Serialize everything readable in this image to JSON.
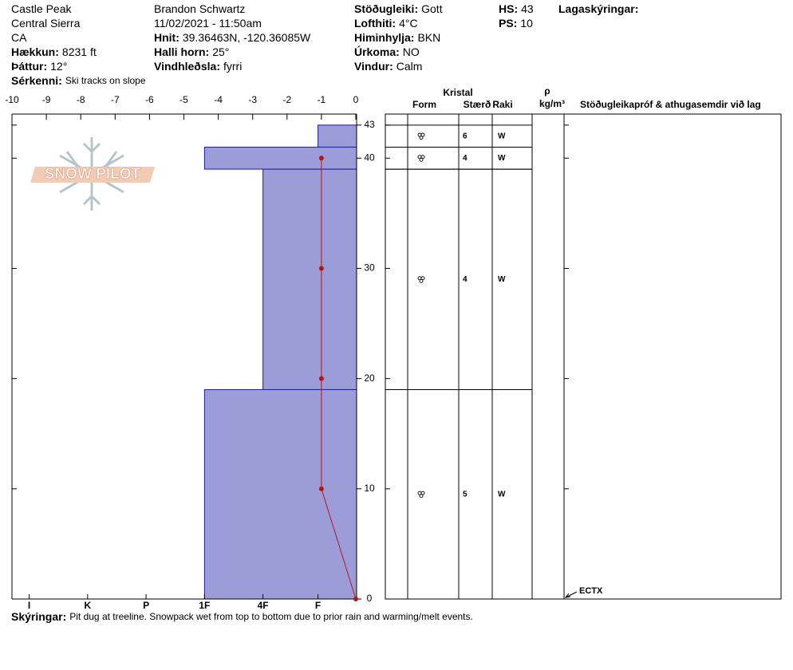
{
  "header": {
    "columns": [
      [
        {
          "value": "Castle Peak"
        },
        {
          "value": "Central Sierra"
        },
        {
          "value": "CA"
        },
        {
          "label": "Hækkun:",
          "value": "8231 ft"
        },
        {
          "label": "Þáttur:",
          "value": "12°"
        },
        {
          "label": "Sérkenni:",
          "value": "Ski tracks on slope"
        }
      ],
      [
        {
          "value": "Brandon Schwartz"
        },
        {
          "value": "11/02/2021 - 11:50am"
        },
        {
          "label": "Hnit:",
          "value": "39.36463N, -120.36085W"
        },
        {
          "label": "Halli horn:",
          "value": "25°"
        },
        {
          "label": "Vindhleðsla:",
          "value": "fyrri"
        }
      ],
      [
        {
          "label": "Stöðugleiki:",
          "value": "Gott"
        },
        {
          "label": "Lofthiti:",
          "value": "4°C"
        },
        {
          "label": "Himinhylja:",
          "value": "BKN"
        },
        {
          "label": "Úrkoma:",
          "value": "NO"
        },
        {
          "label": "Vindur:",
          "value": "Calm"
        }
      ],
      [
        {
          "label": "HS:",
          "value": "43"
        },
        {
          "label": "PS:",
          "value": "10"
        }
      ],
      [
        {
          "label": "Lagaskýringar:"
        }
      ]
    ]
  },
  "logo": "SNOW PILOT",
  "chart_data": {
    "type": "snow-profile",
    "xlim": [
      -10,
      0
    ],
    "xticks": [
      -10,
      -9,
      -8,
      -7,
      -6,
      -5,
      -4,
      -3,
      -2,
      -1,
      0
    ],
    "hardness_ticks": [
      {
        "value": -9.5,
        "label": "I"
      },
      {
        "value": -7.8,
        "label": "K"
      },
      {
        "value": -6.1,
        "label": "P"
      },
      {
        "value": -4.4,
        "label": "1F"
      },
      {
        "value": -2.7,
        "label": "4F"
      },
      {
        "value": -1.1,
        "label": "F"
      }
    ],
    "ylim": [
      0,
      44
    ],
    "yticks": [
      0,
      10,
      20,
      30,
      40,
      43
    ],
    "bar_color": "#9c9cd8",
    "bar_edge": "#1c1c96",
    "layers": [
      {
        "top": 43,
        "bottom": 41,
        "hardness": -1.1,
        "size": "6",
        "moisture": "W"
      },
      {
        "top": 41,
        "bottom": 39,
        "hardness": -4.4,
        "size": "4",
        "moisture": "W"
      },
      {
        "top": 39,
        "bottom": 19,
        "hardness": -2.7,
        "size": "4",
        "moisture": "W"
      },
      {
        "top": 19,
        "bottom": 0,
        "hardness": -4.4,
        "size": "5",
        "moisture": "W"
      }
    ],
    "temperature": {
      "color": "#b01818",
      "depths": [
        40,
        30,
        20,
        10,
        0
      ],
      "values": [
        -1,
        -1,
        -1,
        -1,
        0
      ]
    },
    "table_headers": {
      "crystal": "Kristal",
      "form": "Form",
      "size": "Stærð",
      "moisture": "Raki",
      "density": "ρ",
      "density_unit": "kg/m³",
      "comments": "Stöðugleikapróf & athugasemdir við lag"
    },
    "stability_tests": [
      {
        "depth": 0,
        "label": "ECTX"
      }
    ]
  },
  "footer": {
    "label": "Skýringar:",
    "value": "Pit dug at treeline. Snowpack wet from top to bottom due to prior rain and warming/melt events."
  }
}
